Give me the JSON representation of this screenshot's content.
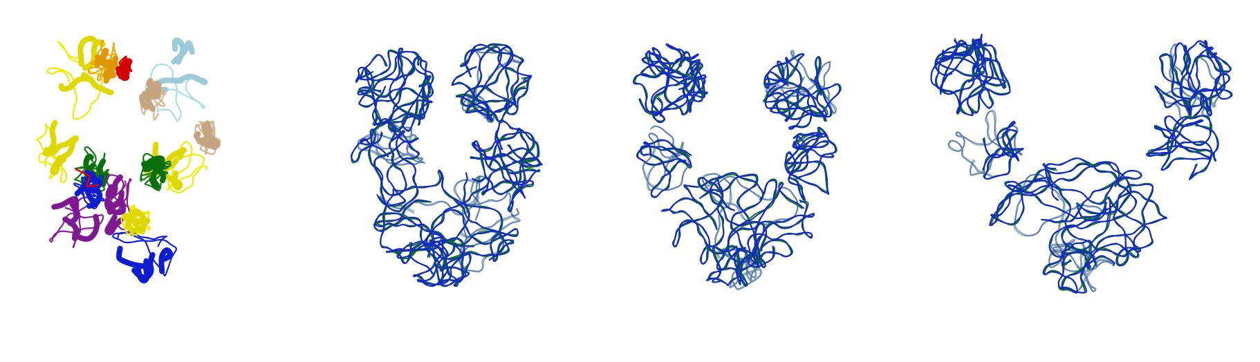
{
  "figure": {
    "panels": [
      {
        "id": "panel-1",
        "style": "cartoon-ribbon",
        "colors": {
          "yellow": "#F2EB00",
          "orange": "#F5A300",
          "red": "#E50000",
          "light_blue": "#A9DDEB",
          "tan": "#D6B48C",
          "green": "#0A7A0A",
          "purple": "#8A1C9E",
          "blue": "#1020E0"
        }
      },
      {
        "id": "panel-2",
        "style": "backbone-trace-overlay",
        "colors": {
          "trace_a": "#0B7A0B",
          "trace_b": "#1422D8"
        }
      },
      {
        "id": "panel-3",
        "style": "backbone-trace-overlay",
        "colors": {
          "trace_a": "#0B7A0B",
          "trace_b": "#1422D8"
        }
      },
      {
        "id": "panel-4",
        "style": "backbone-trace-overlay",
        "colors": {
          "trace_a": "#0B7A0B",
          "trace_b": "#1422D8"
        }
      }
    ]
  }
}
